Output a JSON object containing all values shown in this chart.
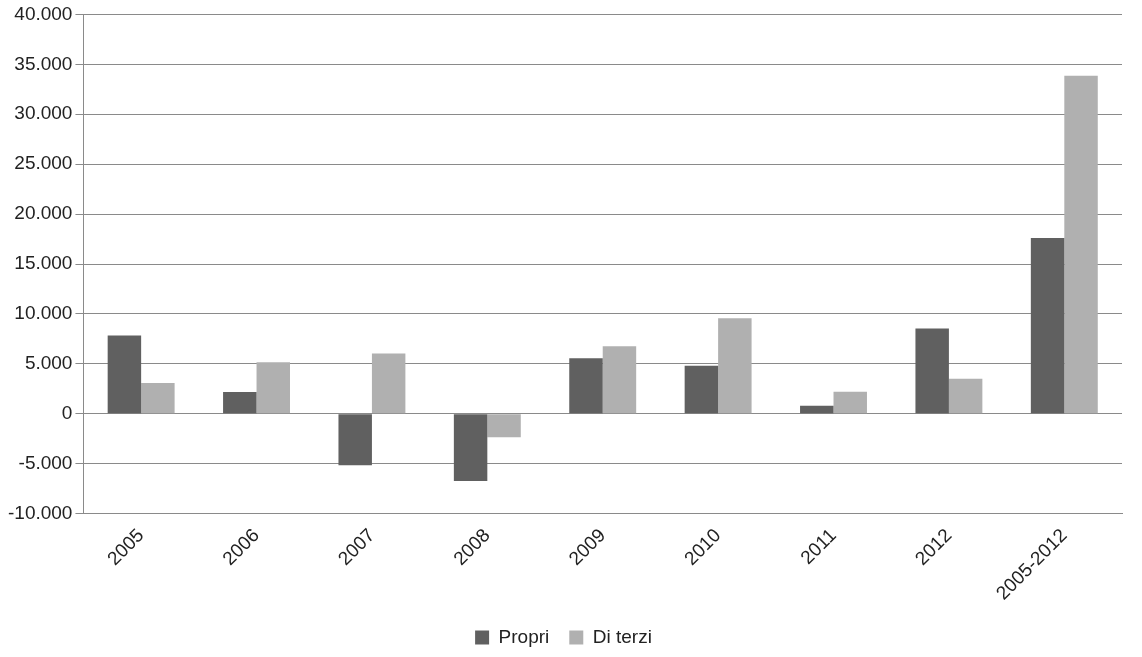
{
  "chart_data": {
    "type": "bar",
    "categories": [
      "2005",
      "2006",
      "2007",
      "2008",
      "2009",
      "2010",
      "2011",
      "2012",
      "2005-2012"
    ],
    "series": [
      {
        "name": "Propri",
        "color": "#606060",
        "values": [
          7850,
          2190,
          -5160,
          -6720,
          5570,
          4810,
          800,
          8550,
          17600
        ]
      },
      {
        "name": "Di terzi",
        "color": "#b0b0b0",
        "values": [
          3090,
          5160,
          6050,
          -2340,
          6760,
          9580,
          2210,
          3510,
          33860
        ]
      }
    ],
    "ylim": [
      -10000,
      40000
    ],
    "yticks": [
      {
        "value": -10000,
        "label": "-10.000"
      },
      {
        "value": -5000,
        "label": "-5.000"
      },
      0,
      {
        "value": 5000,
        "label": "5.000"
      },
      {
        "value": 10000,
        "label": "10.000"
      },
      {
        "value": 15000,
        "label": "15.000"
      },
      {
        "value": 20000,
        "label": "20.000"
      },
      {
        "value": 25000,
        "label": "25.000"
      },
      {
        "value": 30000,
        "label": "30.000"
      },
      {
        "value": 35000,
        "label": "35.000"
      },
      {
        "value": 40000,
        "label": "40.000"
      }
    ],
    "grid": "y",
    "legend": "bottom"
  }
}
